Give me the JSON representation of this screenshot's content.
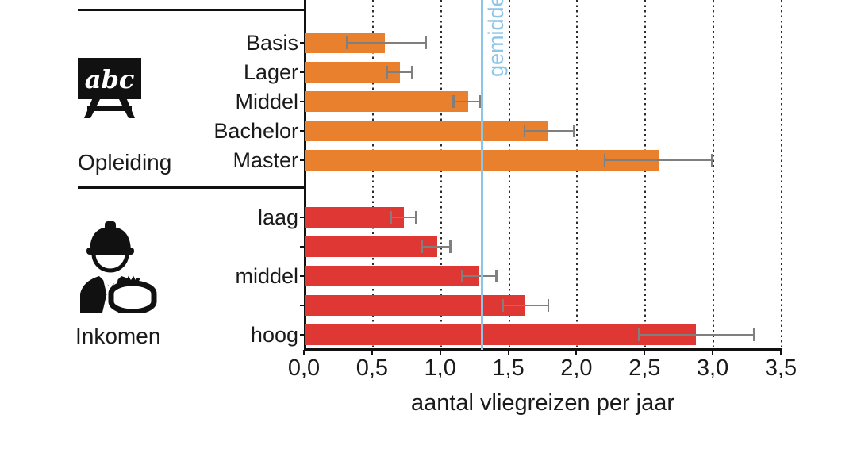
{
  "chart_data": {
    "type": "bar",
    "orientation": "horizontal",
    "xlabel": "aantal vliegreizen per jaar",
    "xlim": [
      0,
      3.5
    ],
    "xtick_labels": [
      "0,0",
      "0,5",
      "1,0",
      "1,5",
      "2,0",
      "2,5",
      "3,0",
      "3,5"
    ],
    "grid": "dotted-vertical",
    "legend_position": "none",
    "average_line": {
      "value": 1.3,
      "label": "gemiddelde",
      "color": "#8CC5E8"
    },
    "error_bar_color": "#7f7f7f",
    "groups": [
      {
        "name": "Opleiding",
        "icon": "chalkboard-abc-icon",
        "color": "#E8802E",
        "bars": [
          {
            "label": "Basis",
            "value": 0.59,
            "err_low": 0.31,
            "err_high": 0.9
          },
          {
            "label": "Lager",
            "value": 0.7,
            "err_low": 0.6,
            "err_high": 0.8
          },
          {
            "label": "Middel",
            "value": 1.2,
            "err_low": 1.09,
            "err_high": 1.3
          },
          {
            "label": "Bachelor",
            "value": 1.79,
            "err_low": 1.61,
            "err_high": 1.99
          },
          {
            "label": "Master",
            "value": 2.6,
            "err_low": 2.2,
            "err_high": 3.0
          }
        ]
      },
      {
        "name": "Inkomen",
        "icon": "worker-coins-icon",
        "color": "#DF3733",
        "bars": [
          {
            "label": "laag",
            "value": 0.73,
            "err_low": 0.63,
            "err_high": 0.83
          },
          {
            "label": "",
            "value": 0.97,
            "err_low": 0.86,
            "err_high": 1.08
          },
          {
            "label": "middel",
            "value": 1.28,
            "err_low": 1.15,
            "err_high": 1.42
          },
          {
            "label": "",
            "value": 1.62,
            "err_low": 1.45,
            "err_high": 1.8
          },
          {
            "label": "hoog",
            "value": 2.87,
            "err_low": 2.45,
            "err_high": 3.31
          }
        ]
      }
    ]
  }
}
